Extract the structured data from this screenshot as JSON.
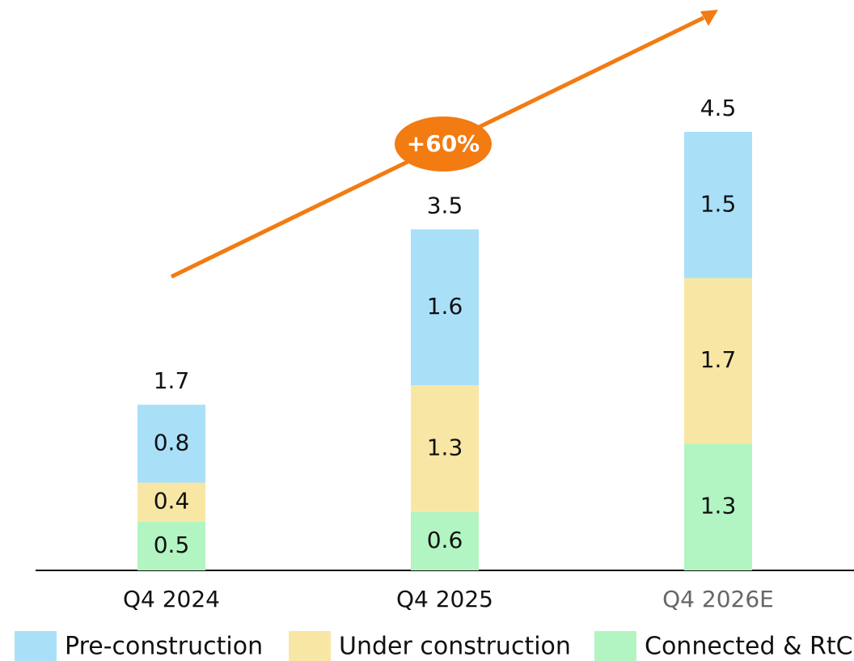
{
  "chart_data": {
    "type": "stacked-bar",
    "categories": [
      "Q4 2024",
      "Q4 2025",
      "Q4 2026E"
    ],
    "category_colors": [
      "#111111",
      "#111111",
      "#666666"
    ],
    "series": [
      {
        "name": "Connected & RtC",
        "color": "#b2f5c2",
        "values": [
          0.5,
          0.6,
          1.3
        ]
      },
      {
        "name": "Under construction",
        "color": "#f8e7a4",
        "values": [
          0.4,
          1.3,
          1.7
        ]
      },
      {
        "name": "Pre-construction",
        "color": "#a9e0f8",
        "values": [
          0.8,
          1.6,
          1.5
        ]
      }
    ],
    "totals": [
      1.7,
      3.5,
      4.5
    ],
    "annotation": "+60%",
    "annotation_color": "#f27b12"
  }
}
